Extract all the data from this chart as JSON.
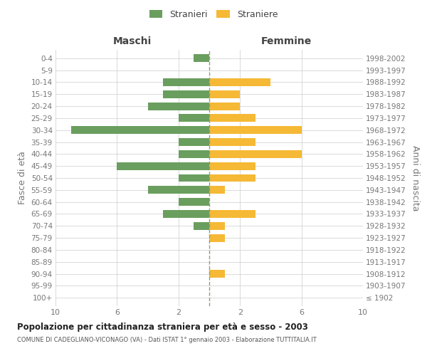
{
  "age_groups": [
    "100+",
    "95-99",
    "90-94",
    "85-89",
    "80-84",
    "75-79",
    "70-74",
    "65-69",
    "60-64",
    "55-59",
    "50-54",
    "45-49",
    "40-44",
    "35-39",
    "30-34",
    "25-29",
    "20-24",
    "15-19",
    "10-14",
    "5-9",
    "0-4"
  ],
  "birth_years": [
    "≤ 1902",
    "1903-1907",
    "1908-1912",
    "1913-1917",
    "1918-1922",
    "1923-1927",
    "1928-1932",
    "1933-1937",
    "1938-1942",
    "1943-1947",
    "1948-1952",
    "1953-1957",
    "1958-1962",
    "1963-1967",
    "1968-1972",
    "1973-1977",
    "1978-1982",
    "1983-1987",
    "1988-1992",
    "1993-1997",
    "1998-2002"
  ],
  "males": [
    0,
    0,
    0,
    0,
    0,
    0,
    1,
    3,
    2,
    4,
    2,
    6,
    2,
    2,
    9,
    2,
    4,
    3,
    3,
    0,
    1
  ],
  "females": [
    0,
    0,
    1,
    0,
    0,
    1,
    1,
    3,
    0,
    1,
    3,
    3,
    6,
    3,
    6,
    3,
    2,
    2,
    4,
    0,
    0
  ],
  "male_color": "#6a9e5e",
  "female_color": "#f5b935",
  "title": "Popolazione per cittadinanza straniera per età e sesso - 2003",
  "subtitle": "COMUNE DI CADEGLIANO-VICONAGO (VA) - Dati ISTAT 1° gennaio 2003 - Elaborazione TUTTITALIA.IT",
  "xlabel_left": "Maschi",
  "xlabel_right": "Femmine",
  "ylabel_left": "Fasce di età",
  "ylabel_right": "Anni di nascita",
  "legend_male": "Stranieri",
  "legend_female": "Straniere",
  "xlim": 10,
  "background_color": "#ffffff",
  "grid_color": "#cccccc",
  "text_color": "#777777",
  "dashed_line_color": "#999977"
}
